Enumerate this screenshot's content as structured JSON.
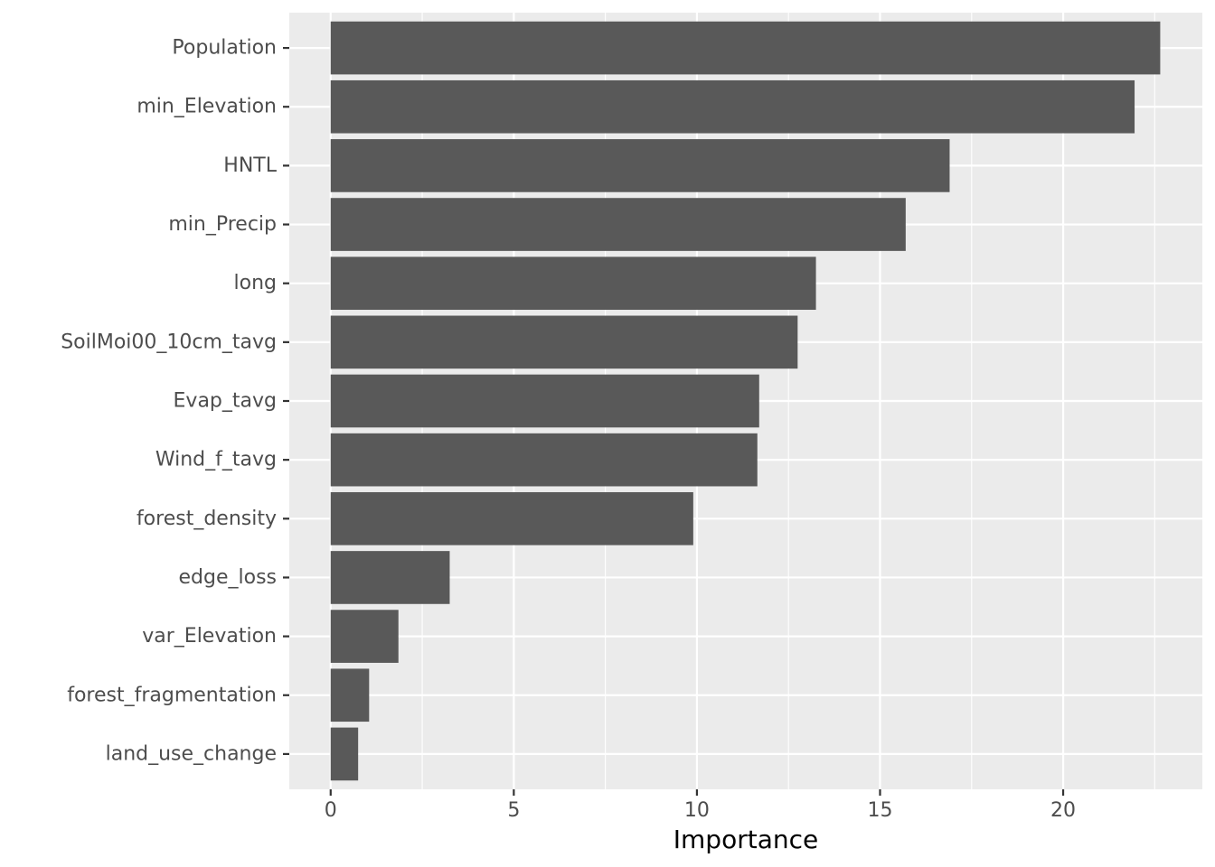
{
  "chart_data": {
    "type": "bar",
    "orientation": "horizontal",
    "categories": [
      "Population",
      "min_Elevation",
      "HNTL",
      "min_Precip",
      "long",
      "SoilMoi00_10cm_tavg",
      "Evap_tavg",
      "Wind_f_tavg",
      "forest_density",
      "edge_loss",
      "var_Elevation",
      "forest_fragmentation",
      "land_use_change"
    ],
    "values": [
      22.65,
      21.95,
      16.9,
      15.7,
      13.25,
      12.75,
      11.7,
      11.65,
      9.9,
      3.25,
      1.85,
      1.05,
      0.75
    ],
    "title": "",
    "xlabel": "Importance",
    "ylabel": "",
    "xlim": [
      -1.13,
      23.8
    ],
    "xticks": [
      0,
      5,
      10,
      15,
      20
    ],
    "grid": true,
    "legend": "none",
    "colors": {
      "panel_background": "#ebebeb",
      "grid_line": "#ffffff",
      "bar_fill": "#595959",
      "tick_mark": "#333333"
    }
  }
}
